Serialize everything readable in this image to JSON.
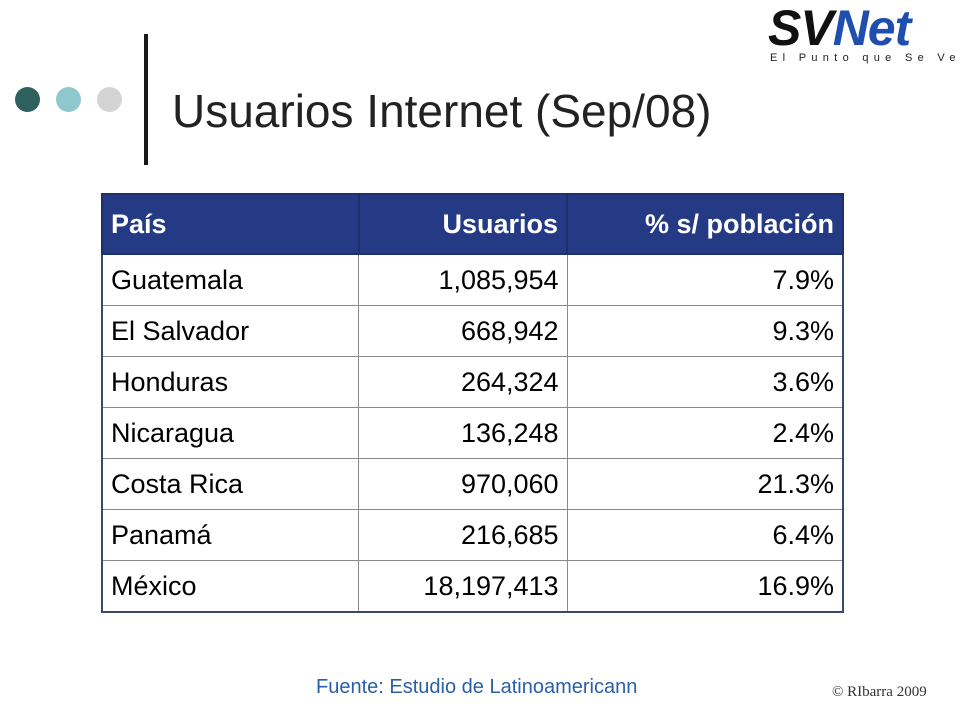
{
  "slide": {
    "title": "Usuarios Internet (Sep/08)",
    "source": "Fuente: Estudio de Latinoamericann",
    "copyright": "© RIbarra 2009"
  },
  "logo": {
    "main_sv": "SV",
    "main_net": "Net",
    "tagline": "El Punto que Se Ve",
    "colors": {
      "sv": "#111111",
      "net": "#1f4fae"
    }
  },
  "decor": {
    "dot_colors": [
      "#2f5f5e",
      "#8fc8cc",
      "#d4d4d4"
    ]
  },
  "table": {
    "header_color": "#253a84",
    "headers": [
      "País",
      "Usuarios",
      "% s/ población"
    ],
    "rows": [
      [
        "Guatemala",
        "1,085,954",
        "7.9%"
      ],
      [
        "El Salvador",
        "668,942",
        "9.3%"
      ],
      [
        "Honduras",
        "264,324",
        "3.6%"
      ],
      [
        "Nicaragua",
        "136,248",
        "2.4%"
      ],
      [
        "Costa Rica",
        "970,060",
        "21.3%"
      ],
      [
        "Panamá",
        "216,685",
        "6.4%"
      ],
      [
        "México",
        "18,197,413",
        "16.9%"
      ]
    ]
  }
}
